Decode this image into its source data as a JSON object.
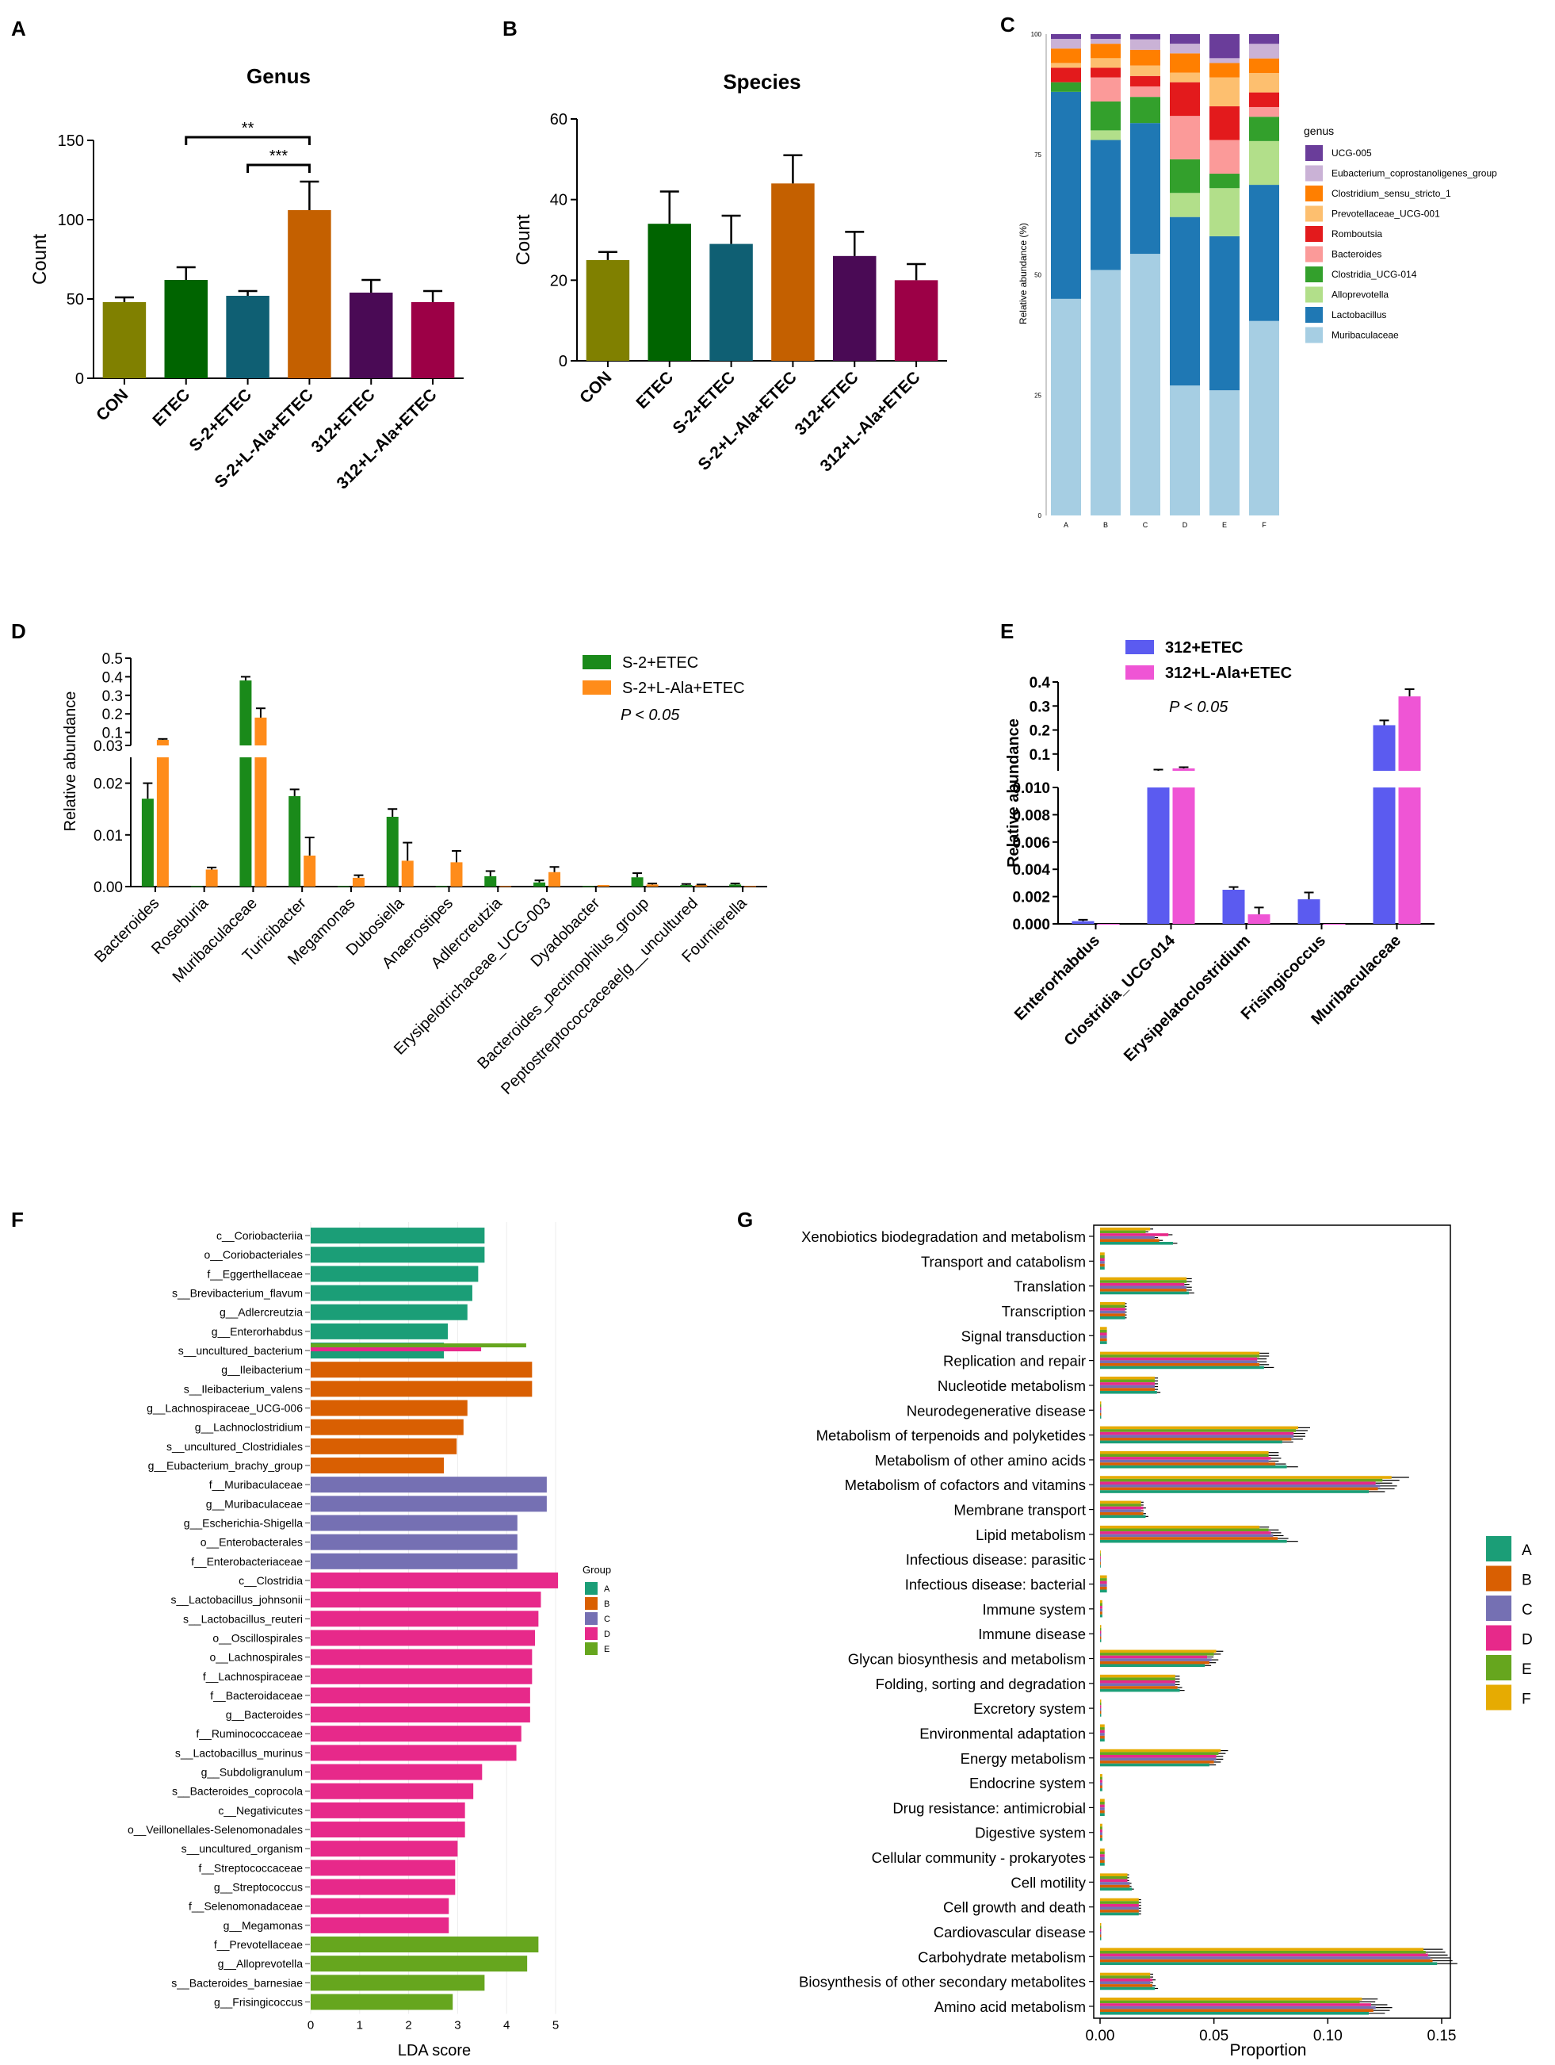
{
  "colors": {
    "A": "#808000",
    "B": "#006400",
    "C": "#0f5f73",
    "D": "#c46000",
    "E": "#4a0a55",
    "F": "#9c0046",
    "S2": "#1a8a1a",
    "S2L": "#ff8c1a",
    "p312": "#5b5bf0",
    "p312L": "#ef55d5",
    "gA": "#1b9e77",
    "gB": "#d95f02",
    "gC": "#7570b3",
    "gD": "#e7298a",
    "gE": "#66a61e",
    "gF": "#e6ab02"
  },
  "panels": {
    "a": "A",
    "b": "B",
    "c": "C",
    "d": "D",
    "e": "E",
    "f": "F",
    "g": "G"
  },
  "chart_data": [
    {
      "id": "A",
      "type": "bar",
      "title": "Genus",
      "ylabel": "Count",
      "ylim": [
        0,
        150
      ],
      "yticks": [
        0,
        50,
        100,
        150
      ],
      "categories": [
        "CON",
        "ETEC",
        "S-2+ETEC",
        "S-2+L-Ala+ETEC",
        "312+ETEC",
        "312+L-Ala+ETEC"
      ],
      "values": [
        48,
        62,
        52,
        106,
        54,
        48
      ],
      "errors": [
        3,
        8,
        3,
        18,
        8,
        7
      ],
      "significance": [
        {
          "label": "**",
          "from": 1,
          "to": 3
        },
        {
          "label": "***",
          "from": 2,
          "to": 3
        }
      ]
    },
    {
      "id": "B",
      "type": "bar",
      "title": "Species",
      "ylabel": "Count",
      "ylim": [
        0,
        60
      ],
      "yticks": [
        0,
        20,
        40,
        60
      ],
      "categories": [
        "CON",
        "ETEC",
        "S-2+ETEC",
        "S-2+L-Ala+ETEC",
        "312+ETEC",
        "312+L-Ala+ETEC"
      ],
      "values": [
        25,
        34,
        29,
        44,
        26,
        20
      ],
      "errors": [
        2,
        8,
        7,
        7,
        6,
        4
      ]
    },
    {
      "id": "C",
      "type": "bar",
      "stacked": true,
      "ylabel": "Relative abundance (%)",
      "yticks": [
        "0",
        "25",
        "50",
        "75",
        "100"
      ],
      "categories": [
        "A",
        "B",
        "C",
        "D",
        "E",
        "F"
      ],
      "legend_title": "genus",
      "series": [
        {
          "name": "Muribaculaceae",
          "color": "#a6cee3",
          "values": [
            45,
            51,
            50,
            27,
            26,
            40
          ]
        },
        {
          "name": "Lactobacillus",
          "color": "#1f78b4",
          "values": [
            43,
            27,
            25,
            35,
            32,
            28
          ]
        },
        {
          "name": "Alloprevotella",
          "color": "#b2df8a",
          "values": [
            0,
            2,
            0,
            5,
            10,
            9
          ]
        },
        {
          "name": "Clostridia_UCG-014",
          "color": "#33a02c",
          "values": [
            2,
            6,
            5,
            7,
            3,
            5
          ]
        },
        {
          "name": "Bacteroides",
          "color": "#fb9a99",
          "values": [
            0,
            5,
            2,
            9,
            7,
            2
          ]
        },
        {
          "name": "Romboutsia",
          "color": "#e31a1c",
          "values": [
            3,
            2,
            2,
            7,
            7,
            3
          ]
        },
        {
          "name": "Prevotellaceae_UCG-001",
          "color": "#fdbf6f",
          "values": [
            1,
            2,
            2,
            2,
            6,
            4
          ]
        },
        {
          "name": "Clostridium_sensu_stricto_1",
          "color": "#ff7f00",
          "values": [
            3,
            3,
            3,
            4,
            3,
            3
          ]
        },
        {
          "name": "Eubacterium_coprostanoligenes_group",
          "color": "#cab2d6",
          "values": [
            2,
            1,
            2,
            2,
            1,
            3
          ]
        },
        {
          "name": "UCG-005",
          "color": "#6a3d9a",
          "values": [
            1,
            1,
            1,
            2,
            5,
            2
          ]
        }
      ]
    },
    {
      "id": "D",
      "type": "bar",
      "ylabel": "Relative abundance",
      "note": "P < 0.05",
      "upper_ticks": [
        "0.5",
        "0.4",
        "0.3",
        "0.2",
        "0.1",
        "0.03"
      ],
      "lower_ticks": [
        "0.02",
        "0.01",
        "0.00"
      ],
      "categories": [
        "Bacteroides",
        "Roseburia",
        "Muribaculaceae",
        "Turicibacter",
        "Megamonas",
        "Dubosiella",
        "Anaerostipes",
        "Adlercreutzia",
        "Erysipelotrichaceae_UCG-003",
        "Dyadobacter",
        "Bacteroides_pectinophilus_group",
        "Peptostreptococcaceae|g__uncultured",
        "Fournierella"
      ],
      "series": [
        {
          "name": "S-2+ETEC",
          "values": [
            0.017,
            0.0001,
            0.38,
            0.0175,
            0.0001,
            0.0135,
            0.0001,
            0.002,
            0.0008,
            0.0001,
            0.0018,
            0.0003,
            0.0004
          ],
          "errors": [
            0.003,
            0,
            0.02,
            0.0013,
            0,
            0.0015,
            0,
            0.001,
            0.0004,
            0,
            0.0008,
            0.0002,
            0.0002
          ]
        },
        {
          "name": "S-2+L-Ala+ETEC",
          "values": [
            0.06,
            0.0033,
            0.18,
            0.006,
            0.0017,
            0.005,
            0.0047,
            0.0001,
            0.0028,
            0.0003,
            0.0004,
            0.0003,
            0.0001
          ],
          "errors": [
            0.005,
            0.0004,
            0.05,
            0.0035,
            0.0005,
            0.0035,
            0.0022,
            0,
            0.001,
            0,
            0.0002,
            0.0001,
            0
          ]
        }
      ]
    },
    {
      "id": "E",
      "type": "bar",
      "ylabel": "Relative abundance",
      "note": "P < 0.05",
      "upper_ticks": [
        "0.4",
        "0.3",
        "0.2",
        "0.1"
      ],
      "lower_ticks": [
        "0.010",
        "0.008",
        "0.006",
        "0.004",
        "0.002",
        "0.000"
      ],
      "categories": [
        "Enterorhabdus",
        "Clostridia_UCG-014",
        "Erysipelatoclostridium",
        "Frisingicoccus",
        "Muribaculaceae"
      ],
      "series": [
        {
          "name": "312+ETEC",
          "values": [
            0.0002,
            0.03,
            0.0025,
            0.0018,
            0.22
          ],
          "errors": [
            0.0001,
            0.005,
            0.0002,
            0.0005,
            0.02
          ]
        },
        {
          "name": "312+L-Ala+ETEC",
          "values": [
            0,
            0.04,
            0.0007,
            0,
            0.34
          ],
          "errors": [
            0,
            0.005,
            0.0005,
            0,
            0.03
          ]
        }
      ]
    },
    {
      "id": "F",
      "type": "bar",
      "orientation": "horizontal",
      "xlabel": "LDA score",
      "xlim": [
        0,
        5
      ],
      "xticks": [
        0,
        1,
        2,
        3,
        4,
        5
      ],
      "legend_title": "Group",
      "legend": [
        "A",
        "B",
        "C",
        "D",
        "E"
      ],
      "rows": [
        {
          "label": "c__Coriobacteriia",
          "group": "A",
          "value": 3.55
        },
        {
          "label": "o__Coriobacteriales",
          "group": "A",
          "value": 3.55
        },
        {
          "label": "f__Eggerthellaceae",
          "group": "A",
          "value": 3.42
        },
        {
          "label": "s__Brevibacterium_flavum",
          "group": "A",
          "value": 3.3
        },
        {
          "label": "g__Adlercreutzia",
          "group": "A",
          "value": 3.2
        },
        {
          "label": "g__Enterorhabdus",
          "group": "A",
          "value": 2.8
        },
        {
          "label": "s__uncultured_bacterium",
          "group": "A",
          "value": 2.72,
          "overlay": [
            {
              "group": "E",
              "value": 4.4
            },
            {
              "group": "D",
              "value": 3.48
            }
          ]
        },
        {
          "label": "g__Ileibacterium",
          "group": "B",
          "value": 4.52
        },
        {
          "label": "s__Ileibacterium_valens",
          "group": "B",
          "value": 4.52
        },
        {
          "label": "g__Lachnospiraceae_UCG-006",
          "group": "B",
          "value": 3.2
        },
        {
          "label": "g__Lachnoclostridium",
          "group": "B",
          "value": 3.12
        },
        {
          "label": "s__uncultured_Clostridiales",
          "group": "B",
          "value": 2.98
        },
        {
          "label": "g__Eubacterium_brachy_group",
          "group": "B",
          "value": 2.72
        },
        {
          "label": "f__Muribaculaceae",
          "group": "C",
          "value": 4.82
        },
        {
          "label": "g__Muribaculaceae",
          "group": "C",
          "value": 4.82
        },
        {
          "label": "g__Escherichia-Shigella",
          "group": "C",
          "value": 4.22
        },
        {
          "label": "o__Enterobacterales",
          "group": "C",
          "value": 4.22
        },
        {
          "label": "f__Enterobacteriaceae",
          "group": "C",
          "value": 4.22
        },
        {
          "label": "c__Clostridia",
          "group": "D",
          "value": 5.05
        },
        {
          "label": "s__Lactobacillus_johnsonii",
          "group": "D",
          "value": 4.7
        },
        {
          "label": "s__Lactobacillus_reuteri",
          "group": "D",
          "value": 4.65
        },
        {
          "label": "o__Oscillospirales",
          "group": "D",
          "value": 4.58
        },
        {
          "label": "o__Lachnospirales",
          "group": "D",
          "value": 4.52
        },
        {
          "label": "f__Lachnospiraceae",
          "group": "D",
          "value": 4.52
        },
        {
          "label": "f__Bacteroidaceae",
          "group": "D",
          "value": 4.48
        },
        {
          "label": "g__Bacteroides",
          "group": "D",
          "value": 4.48
        },
        {
          "label": "f__Ruminococcaceae",
          "group": "D",
          "value": 4.3
        },
        {
          "label": "s__Lactobacillus_murinus",
          "group": "D",
          "value": 4.2
        },
        {
          "label": "g__Subdoligranulum",
          "group": "D",
          "value": 3.5
        },
        {
          "label": "s__Bacteroides_coprocola",
          "group": "D",
          "value": 3.32
        },
        {
          "label": "c__Negativicutes",
          "group": "D",
          "value": 3.15
        },
        {
          "label": "o__Veillonellales-Selenomonadales",
          "group": "D",
          "value": 3.15
        },
        {
          "label": "s__uncultured_organism",
          "group": "D",
          "value": 3.0
        },
        {
          "label": "f__Streptococcaceae",
          "group": "D",
          "value": 2.95
        },
        {
          "label": "g__Streptococcus",
          "group": "D",
          "value": 2.95
        },
        {
          "label": "f__Selenomonadaceae",
          "group": "D",
          "value": 2.82
        },
        {
          "label": "g__Megamonas",
          "group": "D",
          "value": 2.82
        },
        {
          "label": "f__Prevotellaceae",
          "group": "E",
          "value": 4.65
        },
        {
          "label": "g__Alloprevotella",
          "group": "E",
          "value": 4.42
        },
        {
          "label": "s__Bacteroides_barnesiae",
          "group": "E",
          "value": 3.55
        },
        {
          "label": "g__Frisingicoccus",
          "group": "E",
          "value": 2.9
        }
      ]
    },
    {
      "id": "G",
      "type": "bar",
      "orientation": "horizontal",
      "xlabel": "Proportion",
      "xlim": [
        0,
        0.15
      ],
      "xticks": [
        "0.00",
        "0.05",
        "0.10",
        "0.15"
      ],
      "legend": [
        "A",
        "B",
        "C",
        "D",
        "E",
        "F"
      ],
      "categories": [
        "Xenobiotics biodegradation and metabolism",
        "Transport and catabolism",
        "Translation",
        "Transcription",
        "Signal transduction",
        "Replication and repair",
        "Nucleotide metabolism",
        "Neurodegenerative disease",
        "Metabolism of terpenoids and polyketides",
        "Metabolism of other amino acids",
        "Metabolism of cofactors and vitamins",
        "Membrane transport",
        "Lipid metabolism",
        "Infectious disease: parasitic",
        "Infectious disease: bacterial",
        "Immune system",
        "Immune disease",
        "Glycan biosynthesis and metabolism",
        "Folding, sorting and degradation",
        "Excretory system",
        "Environmental adaptation",
        "Energy metabolism",
        "Endocrine system",
        "Drug resistance: antimicrobial",
        "Digestive system",
        "Cellular community - prokaryotes",
        "Cell motility",
        "Cell growth and death",
        "Cardiovascular disease",
        "Carbohydrate metabolism",
        "Biosynthesis of other secondary metabolites",
        "Amino acid metabolism"
      ],
      "group_values": {
        "A": [
          0.032,
          0.002,
          0.039,
          0.011,
          0.003,
          0.072,
          0.025,
          0.0005,
          0.08,
          0.082,
          0.118,
          0.02,
          0.082,
          0.0003,
          0.003,
          0.001,
          0.0005,
          0.046,
          0.035,
          0.0005,
          0.002,
          0.048,
          0.001,
          0.002,
          0.001,
          0.002,
          0.014,
          0.017,
          0.0005,
          0.148,
          0.024,
          0.118
        ],
        "B": [
          0.026,
          0.002,
          0.038,
          0.011,
          0.003,
          0.07,
          0.024,
          0.0005,
          0.084,
          0.077,
          0.122,
          0.019,
          0.078,
          0.0003,
          0.003,
          0.001,
          0.0005,
          0.048,
          0.034,
          0.0005,
          0.002,
          0.05,
          0.001,
          0.002,
          0.001,
          0.002,
          0.013,
          0.017,
          0.0005,
          0.146,
          0.023,
          0.12
        ],
        "C": [
          0.024,
          0.002,
          0.038,
          0.011,
          0.003,
          0.069,
          0.024,
          0.0005,
          0.085,
          0.074,
          0.123,
          0.018,
          0.076,
          0.0003,
          0.003,
          0.001,
          0.0005,
          0.049,
          0.033,
          0.0005,
          0.002,
          0.051,
          0.001,
          0.002,
          0.001,
          0.002,
          0.013,
          0.017,
          0.0005,
          0.145,
          0.022,
          0.121
        ],
        "D": [
          0.03,
          0.002,
          0.037,
          0.011,
          0.003,
          0.069,
          0.024,
          0.0005,
          0.085,
          0.075,
          0.121,
          0.019,
          0.075,
          0.0003,
          0.003,
          0.001,
          0.0005,
          0.047,
          0.033,
          0.0005,
          0.002,
          0.051,
          0.001,
          0.002,
          0.001,
          0.002,
          0.012,
          0.017,
          0.0005,
          0.144,
          0.023,
          0.119
        ],
        "E": [
          0.02,
          0.002,
          0.038,
          0.011,
          0.003,
          0.07,
          0.024,
          0.0005,
          0.086,
          0.074,
          0.124,
          0.018,
          0.074,
          0.0003,
          0.003,
          0.001,
          0.0005,
          0.05,
          0.033,
          0.0005,
          0.002,
          0.052,
          0.001,
          0.002,
          0.001,
          0.002,
          0.012,
          0.017,
          0.0005,
          0.143,
          0.022,
          0.114
        ],
        "F": [
          0.022,
          0.002,
          0.038,
          0.011,
          0.003,
          0.07,
          0.024,
          0.0005,
          0.087,
          0.074,
          0.128,
          0.018,
          0.07,
          0.0003,
          0.003,
          0.001,
          0.0005,
          0.051,
          0.033,
          0.0005,
          0.002,
          0.053,
          0.001,
          0.002,
          0.001,
          0.002,
          0.012,
          0.017,
          0.0005,
          0.142,
          0.022,
          0.115
        ]
      }
    }
  ]
}
